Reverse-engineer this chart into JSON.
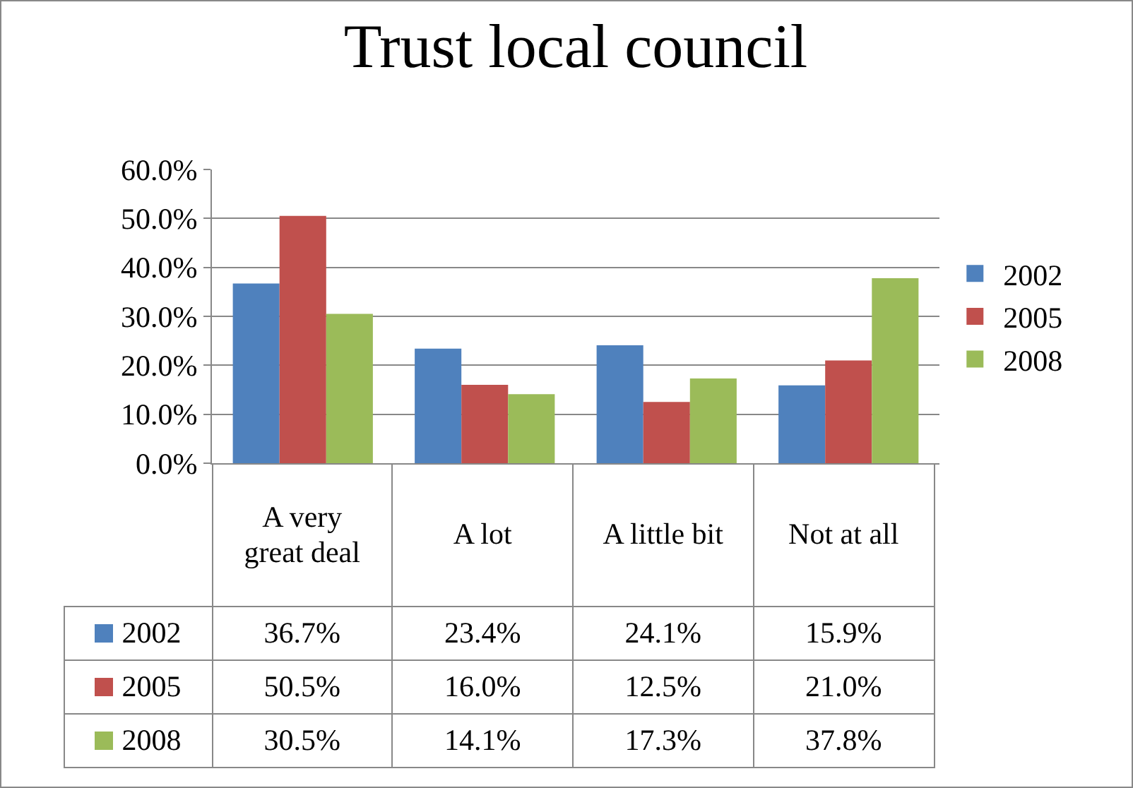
{
  "chart_data": {
    "type": "bar",
    "title": "Trust local council",
    "categories": [
      "A very great deal",
      "A lot",
      "A little bit",
      "Not at all"
    ],
    "series": [
      {
        "name": "2002",
        "color": "#4f81bd",
        "values": [
          36.7,
          23.4,
          24.1,
          15.9
        ],
        "value_labels": [
          "36.7%",
          "23.4%",
          "24.1%",
          "15.9%"
        ]
      },
      {
        "name": "2005",
        "color": "#c0504d",
        "values": [
          50.5,
          16.0,
          12.5,
          21.0
        ],
        "value_labels": [
          "50.5%",
          "16.0%",
          "12.5%",
          "21.0%"
        ]
      },
      {
        "name": "2008",
        "color": "#9bbb59",
        "values": [
          30.5,
          14.1,
          17.3,
          37.8
        ],
        "value_labels": [
          "30.5%",
          "14.1%",
          "17.3%",
          "37.8%"
        ]
      }
    ],
    "ylim": [
      0,
      60
    ],
    "yticks": [
      {
        "value": 0,
        "label": "0.0%"
      },
      {
        "value": 10,
        "label": "10.0%"
      },
      {
        "value": 20,
        "label": "20.0%"
      },
      {
        "value": 30,
        "label": "30.0%"
      },
      {
        "value": 40,
        "label": "40.0%"
      },
      {
        "value": 50,
        "label": "50.0%"
      },
      {
        "value": 60,
        "label": "60.0%"
      }
    ],
    "grid": "y",
    "legend": "right"
  }
}
